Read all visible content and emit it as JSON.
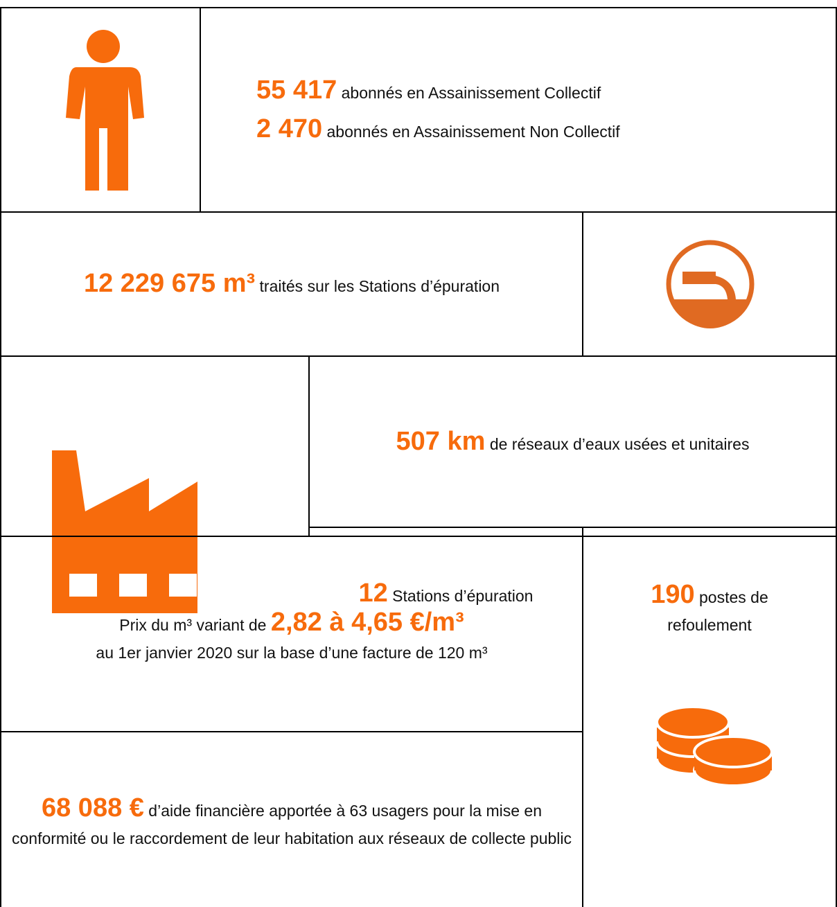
{
  "subscribers": {
    "collective": {
      "number": "55 417",
      "text": "abonnés en Assainissement Collectif"
    },
    "non_collective": {
      "number": "2 470",
      "text": "abonnés en Assainissement Non Collectif"
    }
  },
  "treated": {
    "number": "12 229 675 m³",
    "text": "traités sur les Stations d’épuration"
  },
  "network": {
    "number": "507 km",
    "text": "de réseaux d’eaux usées et unitaires"
  },
  "stations": {
    "number": "12",
    "text": "Stations d’épuration"
  },
  "pumps": {
    "number": "190",
    "text": "postes de refoulement"
  },
  "price": {
    "prefix": "Prix du m³ variant de",
    "number": "2,82 à 4,65 €/m³",
    "text": "au 1er janvier 2020 sur la base d’une facture de 120 m³"
  },
  "aid": {
    "number": "68 088 €",
    "text": "d’aide financière apportée à 63 usagers pour la mise en conformité ou le raccordement de leur habitation aux réseaux de collecte public"
  }
}
